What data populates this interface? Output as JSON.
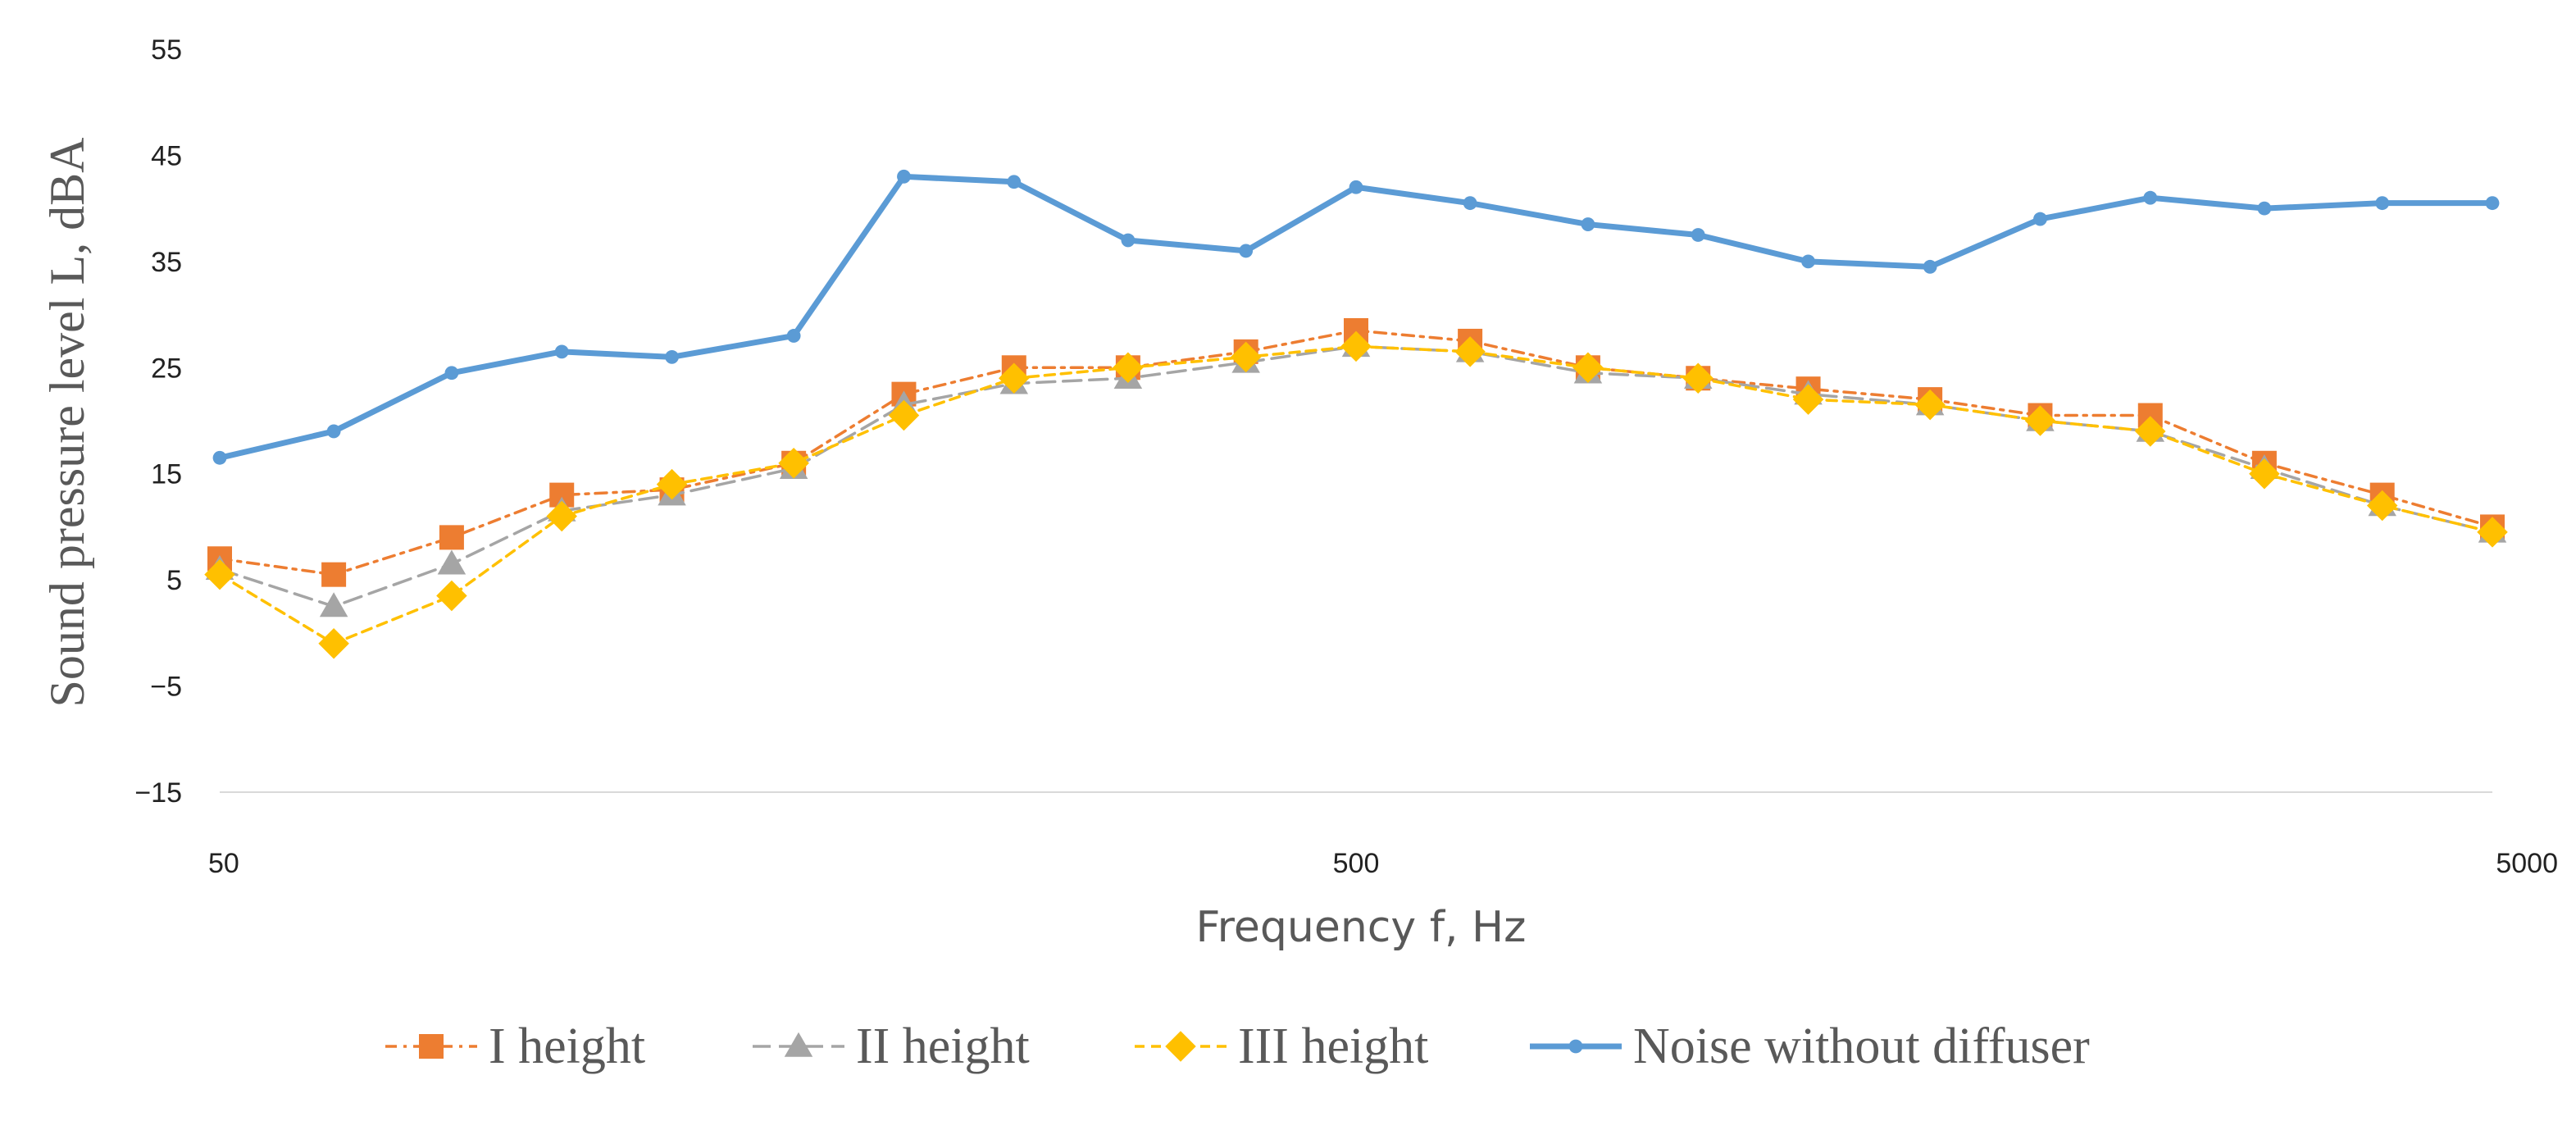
{
  "chart_data": {
    "type": "line",
    "title": "",
    "xlabel": "Frequency f, Hz",
    "ylabel": "Sound pressure level L, dBA",
    "x_scale": "log",
    "xlim": [
      50,
      5000
    ],
    "ylim": [
      -15,
      55
    ],
    "x_ticks": [
      "50",
      "500",
      "5000"
    ],
    "y_ticks": [
      "55",
      "45",
      "35",
      "25",
      "15",
      "5",
      "−5",
      "−15"
    ],
    "grid": false,
    "legend_position": "bottom",
    "x": [
      50,
      63,
      80,
      100,
      125,
      160,
      200,
      250,
      315,
      400,
      500,
      630,
      800,
      1000,
      1250,
      1600,
      2000,
      2500,
      3150,
      4000,
      5000
    ],
    "series": [
      {
        "name": "I height",
        "color": "#ED7D31",
        "marker": "square",
        "line_style": "dash-dot",
        "values": [
          7,
          5.5,
          9,
          13,
          13.5,
          16,
          22.5,
          25,
          25,
          26.5,
          28.5,
          27.5,
          25,
          24,
          23,
          22,
          20.5,
          20.5,
          16,
          13,
          10
        ]
      },
      {
        "name": "II height",
        "color": "#A5A5A5",
        "marker": "triangle",
        "line_style": "long-dash",
        "values": [
          6,
          2.5,
          6.5,
          11.5,
          13,
          15.5,
          21.5,
          23.5,
          24,
          25.5,
          27,
          26.5,
          24.5,
          24,
          22.5,
          21.5,
          20,
          19,
          15.5,
          12,
          9.5
        ]
      },
      {
        "name": "III height",
        "color": "#FFC000",
        "marker": "diamond",
        "line_style": "dash",
        "values": [
          5.5,
          -1,
          3.5,
          11,
          14,
          16,
          20.5,
          24,
          25,
          26,
          27,
          26.5,
          25,
          24,
          22,
          21.5,
          20,
          19,
          15,
          12,
          9.5
        ]
      },
      {
        "name": "Noise without diffuser",
        "color": "#5B9BD5",
        "marker": "circle",
        "line_style": "solid",
        "values": [
          16.5,
          19,
          24.5,
          26.5,
          26,
          28,
          43,
          42.5,
          37,
          36,
          42,
          40.5,
          38.5,
          37.5,
          35,
          34.5,
          39,
          41,
          40,
          40.5,
          40.5
        ]
      }
    ]
  }
}
